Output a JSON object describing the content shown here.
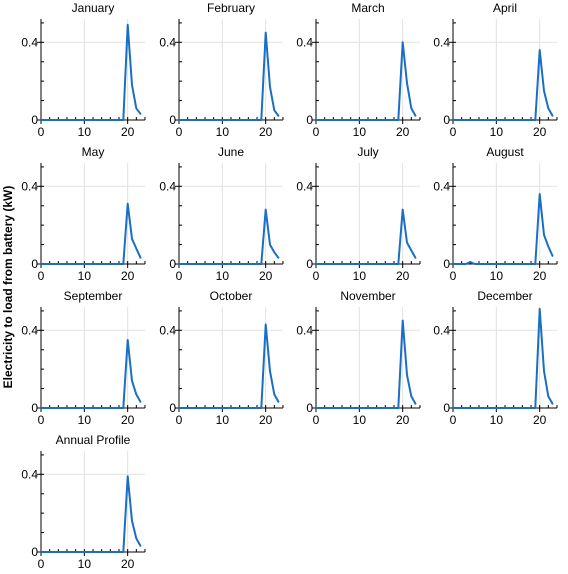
{
  "ylabel": "Electricity to load from battery (kW)",
  "line_color": "#1a6fc4",
  "chart_data": [
    {
      "type": "line",
      "title": "January",
      "x": [
        0,
        1,
        2,
        3,
        4,
        5,
        6,
        7,
        8,
        9,
        10,
        11,
        12,
        13,
        14,
        15,
        16,
        17,
        18,
        19,
        20,
        21,
        22,
        23
      ],
      "y": [
        0,
        0,
        0,
        0,
        0,
        0,
        0,
        0,
        0,
        0,
        0,
        0,
        0,
        0,
        0,
        0,
        0,
        0,
        0,
        0,
        0.49,
        0.18,
        0.06,
        0.03
      ],
      "xlim": [
        0,
        24
      ],
      "ylim": [
        0,
        0.52
      ],
      "xticks": [
        0,
        10,
        20
      ],
      "yticks": [
        0,
        0.4
      ],
      "grid": true
    },
    {
      "type": "line",
      "title": "February",
      "x": [
        0,
        1,
        2,
        3,
        4,
        5,
        6,
        7,
        8,
        9,
        10,
        11,
        12,
        13,
        14,
        15,
        16,
        17,
        18,
        19,
        20,
        21,
        22,
        23
      ],
      "y": [
        0,
        0,
        0,
        0,
        0,
        0,
        0,
        0,
        0,
        0,
        0,
        0,
        0,
        0,
        0,
        0,
        0,
        0,
        0,
        0,
        0.45,
        0.17,
        0.05,
        0.02
      ],
      "xlim": [
        0,
        24
      ],
      "ylim": [
        0,
        0.52
      ],
      "xticks": [
        0,
        10,
        20
      ],
      "yticks": [
        0,
        0.4
      ],
      "grid": true
    },
    {
      "type": "line",
      "title": "March",
      "x": [
        0,
        1,
        2,
        3,
        4,
        5,
        6,
        7,
        8,
        9,
        10,
        11,
        12,
        13,
        14,
        15,
        16,
        17,
        18,
        19,
        20,
        21,
        22,
        23
      ],
      "y": [
        0,
        0,
        0,
        0,
        0,
        0,
        0,
        0,
        0,
        0,
        0,
        0,
        0,
        0,
        0,
        0,
        0,
        0,
        0,
        0,
        0.4,
        0.19,
        0.06,
        0.02
      ],
      "xlim": [
        0,
        24
      ],
      "ylim": [
        0,
        0.52
      ],
      "xticks": [
        0,
        10,
        20
      ],
      "yticks": [
        0,
        0.4
      ],
      "grid": true
    },
    {
      "type": "line",
      "title": "April",
      "x": [
        0,
        1,
        2,
        3,
        4,
        5,
        6,
        7,
        8,
        9,
        10,
        11,
        12,
        13,
        14,
        15,
        16,
        17,
        18,
        19,
        20,
        21,
        22,
        23
      ],
      "y": [
        0,
        0,
        0,
        0,
        0,
        0,
        0,
        0,
        0,
        0,
        0,
        0,
        0,
        0,
        0,
        0,
        0,
        0,
        0,
        0,
        0.36,
        0.15,
        0.06,
        0.02
      ],
      "xlim": [
        0,
        24
      ],
      "ylim": [
        0,
        0.52
      ],
      "xticks": [
        0,
        10,
        20
      ],
      "yticks": [
        0,
        0.4
      ],
      "grid": true
    },
    {
      "type": "line",
      "title": "May",
      "x": [
        0,
        1,
        2,
        3,
        4,
        5,
        6,
        7,
        8,
        9,
        10,
        11,
        12,
        13,
        14,
        15,
        16,
        17,
        18,
        19,
        20,
        21,
        22,
        23
      ],
      "y": [
        0,
        0,
        0,
        0,
        0,
        0,
        0,
        0,
        0,
        0,
        0,
        0,
        0,
        0,
        0,
        0,
        0,
        0,
        0,
        0,
        0.31,
        0.13,
        0.08,
        0.03
      ],
      "xlim": [
        0,
        24
      ],
      "ylim": [
        0,
        0.52
      ],
      "xticks": [
        0,
        10,
        20
      ],
      "yticks": [
        0,
        0.4
      ],
      "grid": true
    },
    {
      "type": "line",
      "title": "June",
      "x": [
        0,
        1,
        2,
        3,
        4,
        5,
        6,
        7,
        8,
        9,
        10,
        11,
        12,
        13,
        14,
        15,
        16,
        17,
        18,
        19,
        20,
        21,
        22,
        23
      ],
      "y": [
        0,
        0,
        0,
        0,
        0,
        0,
        0,
        0,
        0,
        0,
        0,
        0,
        0,
        0,
        0,
        0,
        0,
        0,
        0,
        0,
        0.28,
        0.1,
        0.06,
        0.03
      ],
      "xlim": [
        0,
        24
      ],
      "ylim": [
        0,
        0.52
      ],
      "xticks": [
        0,
        10,
        20
      ],
      "yticks": [
        0,
        0.4
      ],
      "grid": true
    },
    {
      "type": "line",
      "title": "July",
      "x": [
        0,
        1,
        2,
        3,
        4,
        5,
        6,
        7,
        8,
        9,
        10,
        11,
        12,
        13,
        14,
        15,
        16,
        17,
        18,
        19,
        20,
        21,
        22,
        23
      ],
      "y": [
        0,
        0,
        0,
        0,
        0,
        0,
        0,
        0,
        0,
        0,
        0,
        0,
        0,
        0,
        0,
        0,
        0,
        0,
        0,
        0,
        0.28,
        0.11,
        0.07,
        0.03
      ],
      "xlim": [
        0,
        24
      ],
      "ylim": [
        0,
        0.52
      ],
      "xticks": [
        0,
        10,
        20
      ],
      "yticks": [
        0,
        0.4
      ],
      "grid": true
    },
    {
      "type": "line",
      "title": "August",
      "x": [
        0,
        1,
        2,
        3,
        4,
        5,
        6,
        7,
        8,
        9,
        10,
        11,
        12,
        13,
        14,
        15,
        16,
        17,
        18,
        19,
        20,
        21,
        22,
        23
      ],
      "y": [
        0,
        0,
        0,
        0,
        0.01,
        0,
        0,
        0,
        0,
        0,
        0,
        0,
        0,
        0,
        0,
        0,
        0,
        0,
        0,
        0,
        0.36,
        0.15,
        0.09,
        0.04
      ],
      "xlim": [
        0,
        24
      ],
      "ylim": [
        0,
        0.52
      ],
      "xticks": [
        0,
        10,
        20
      ],
      "yticks": [
        0,
        0.4
      ],
      "grid": true
    },
    {
      "type": "line",
      "title": "September",
      "x": [
        0,
        1,
        2,
        3,
        4,
        5,
        6,
        7,
        8,
        9,
        10,
        11,
        12,
        13,
        14,
        15,
        16,
        17,
        18,
        19,
        20,
        21,
        22,
        23
      ],
      "y": [
        0,
        0,
        0,
        0,
        0,
        0,
        0,
        0,
        0,
        0,
        0,
        0,
        0,
        0,
        0,
        0,
        0,
        0,
        0,
        0,
        0.35,
        0.14,
        0.07,
        0.03
      ],
      "xlim": [
        0,
        24
      ],
      "ylim": [
        0,
        0.52
      ],
      "xticks": [
        0,
        10,
        20
      ],
      "yticks": [
        0,
        0.4
      ],
      "grid": true
    },
    {
      "type": "line",
      "title": "October",
      "x": [
        0,
        1,
        2,
        3,
        4,
        5,
        6,
        7,
        8,
        9,
        10,
        11,
        12,
        13,
        14,
        15,
        16,
        17,
        18,
        19,
        20,
        21,
        22,
        23
      ],
      "y": [
        0,
        0,
        0,
        0,
        0,
        0,
        0,
        0,
        0,
        0,
        0,
        0,
        0,
        0,
        0,
        0,
        0,
        0,
        0,
        0,
        0.43,
        0.19,
        0.07,
        0.03
      ],
      "xlim": [
        0,
        24
      ],
      "ylim": [
        0,
        0.52
      ],
      "xticks": [
        0,
        10,
        20
      ],
      "yticks": [
        0,
        0.4
      ],
      "grid": true
    },
    {
      "type": "line",
      "title": "November",
      "x": [
        0,
        1,
        2,
        3,
        4,
        5,
        6,
        7,
        8,
        9,
        10,
        11,
        12,
        13,
        14,
        15,
        16,
        17,
        18,
        19,
        20,
        21,
        22,
        23
      ],
      "y": [
        0,
        0,
        0,
        0,
        0,
        0,
        0,
        0,
        0,
        0,
        0,
        0,
        0,
        0,
        0,
        0,
        0,
        0,
        0,
        0,
        0.45,
        0.17,
        0.06,
        0.02
      ],
      "xlim": [
        0,
        24
      ],
      "ylim": [
        0,
        0.52
      ],
      "xticks": [
        0,
        10,
        20
      ],
      "yticks": [
        0,
        0.4
      ],
      "grid": true
    },
    {
      "type": "line",
      "title": "December",
      "x": [
        0,
        1,
        2,
        3,
        4,
        5,
        6,
        7,
        8,
        9,
        10,
        11,
        12,
        13,
        14,
        15,
        16,
        17,
        18,
        19,
        20,
        21,
        22,
        23
      ],
      "y": [
        0,
        0,
        0,
        0,
        0,
        0,
        0,
        0,
        0,
        0,
        0,
        0,
        0,
        0,
        0,
        0,
        0,
        0,
        0,
        0,
        0.51,
        0.19,
        0.06,
        0.02
      ],
      "xlim": [
        0,
        24
      ],
      "ylim": [
        0,
        0.52
      ],
      "xticks": [
        0,
        10,
        20
      ],
      "yticks": [
        0,
        0.4
      ],
      "grid": true
    },
    {
      "type": "line",
      "title": "Annual Profile",
      "x": [
        0,
        1,
        2,
        3,
        4,
        5,
        6,
        7,
        8,
        9,
        10,
        11,
        12,
        13,
        14,
        15,
        16,
        17,
        18,
        19,
        20,
        21,
        22,
        23
      ],
      "y": [
        0,
        0,
        0,
        0,
        0,
        0,
        0,
        0,
        0,
        0,
        0,
        0,
        0,
        0,
        0,
        0,
        0,
        0,
        0,
        0,
        0.39,
        0.16,
        0.07,
        0.03
      ],
      "xlim": [
        0,
        24
      ],
      "ylim": [
        0,
        0.52
      ],
      "xticks": [
        0,
        10,
        20
      ],
      "yticks": [
        0,
        0.4
      ],
      "grid": true
    }
  ]
}
